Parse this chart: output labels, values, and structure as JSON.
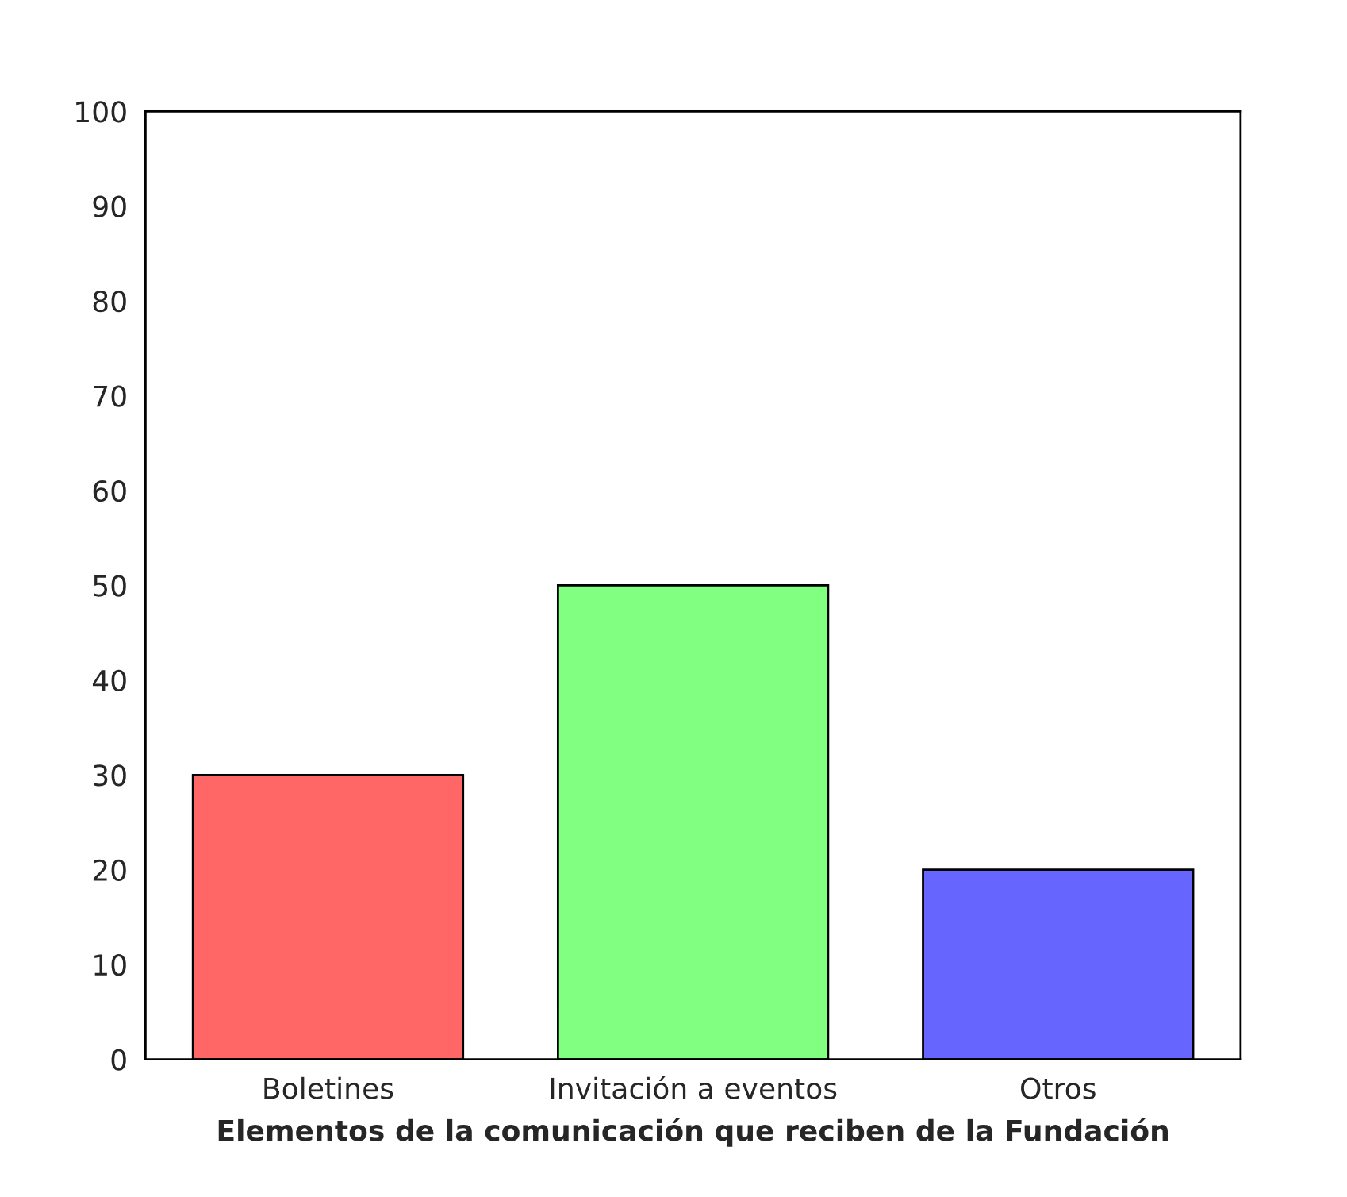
{
  "chart_data": {
    "type": "bar",
    "xlabel": "Elementos de la comunicación que reciben de la Fundación",
    "categories": [
      "Boletines",
      "Invitación a eventos",
      "Otros"
    ],
    "values": [
      30,
      50,
      20
    ],
    "colors": [
      "#ff6666",
      "#80ff80",
      "#6666ff"
    ],
    "ylim": [
      0,
      100
    ],
    "yticks": [
      0,
      10,
      20,
      30,
      40,
      50,
      60,
      70,
      80,
      90,
      100
    ],
    "grid": false
  }
}
